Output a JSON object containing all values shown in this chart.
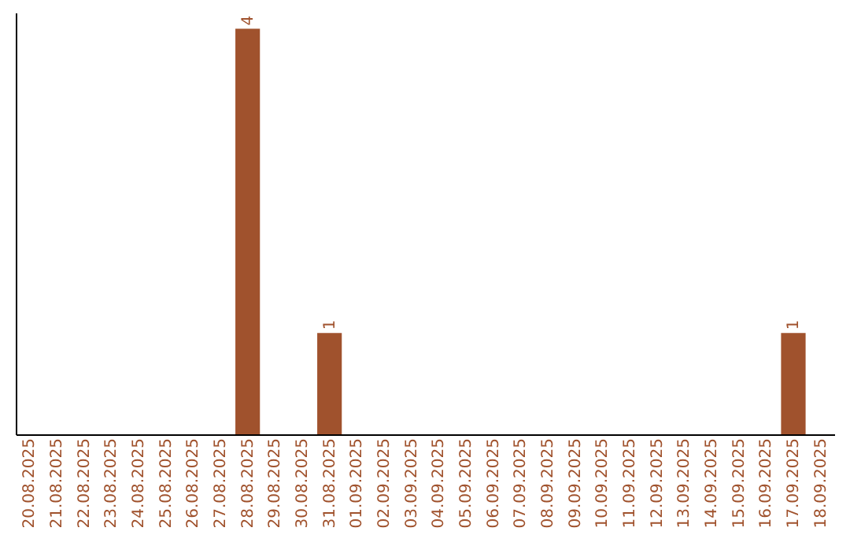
{
  "chart_data": {
    "type": "bar",
    "categories": [
      "20.08.2025",
      "21.08.2025",
      "22.08.2025",
      "23.08.2025",
      "24.08.2025",
      "25.08.2025",
      "26.08.2025",
      "27.08.2025",
      "28.08.2025",
      "29.08.2025",
      "30.08.2025",
      "31.08.2025",
      "01.09.2025",
      "02.09.2025",
      "03.09.2025",
      "04.09.2025",
      "05.09.2025",
      "06.09.2025",
      "07.09.2025",
      "08.09.2025",
      "09.09.2025",
      "10.09.2025",
      "11.09.2025",
      "12.09.2025",
      "13.09.2025",
      "14.09.2025",
      "15.09.2025",
      "16.09.2025",
      "17.09.2025",
      "18.09.2025"
    ],
    "values": [
      0,
      0,
      0,
      0,
      0,
      0,
      0,
      0,
      4,
      0,
      0,
      1,
      0,
      0,
      0,
      0,
      0,
      0,
      0,
      0,
      0,
      0,
      0,
      0,
      0,
      0,
      0,
      0,
      1,
      0
    ],
    "value_labels": [
      null,
      null,
      null,
      null,
      null,
      null,
      null,
      null,
      "4",
      null,
      null,
      "1",
      null,
      null,
      null,
      null,
      null,
      null,
      null,
      null,
      null,
      null,
      null,
      null,
      null,
      null,
      null,
      null,
      "1",
      null
    ],
    "color": "#a0522d",
    "ylim": [
      0,
      4.16
    ],
    "tick_labels": "x",
    "grid": false
  }
}
